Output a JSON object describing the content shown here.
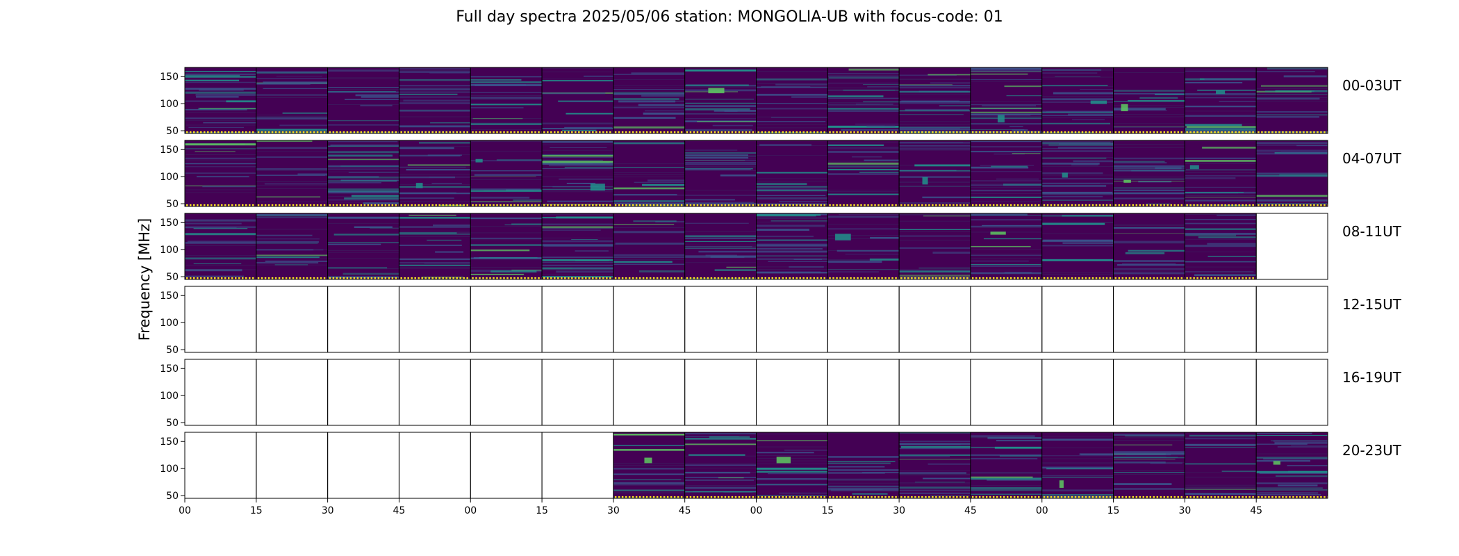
{
  "chart_data": {
    "type": "heatmap",
    "title": "Full day spectra 2025/05/06 station: MONGOLIA-UB with focus-code: 01",
    "ylabel": "Frequency [MHz]",
    "xlabel": "",
    "yticks": [
      50,
      100,
      150
    ],
    "ylim": [
      45,
      167
    ],
    "xticks": [
      "00",
      "15",
      "30",
      "45",
      "00",
      "15",
      "30",
      "45",
      "00",
      "15",
      "30",
      "45",
      "00",
      "15",
      "30",
      "45"
    ],
    "panels_per_row": 16,
    "panel_minutes": 15,
    "colormap": [
      "#440154",
      "#3b528b",
      "#21918c",
      "#5ec962",
      "#fde725"
    ],
    "rows": [
      {
        "label": "00-03UT",
        "available": [
          1,
          1,
          1,
          1,
          1,
          1,
          1,
          1,
          1,
          1,
          1,
          1,
          1,
          1,
          1,
          1
        ]
      },
      {
        "label": "04-07UT",
        "available": [
          1,
          1,
          1,
          1,
          1,
          1,
          1,
          1,
          1,
          1,
          1,
          1,
          1,
          1,
          1,
          1
        ]
      },
      {
        "label": "08-11UT",
        "available": [
          1,
          1,
          1,
          1,
          1,
          1,
          1,
          1,
          1,
          1,
          1,
          1,
          1,
          1,
          1,
          0
        ]
      },
      {
        "label": "12-15UT",
        "available": [
          0,
          0,
          0,
          0,
          0,
          0,
          0,
          0,
          0,
          0,
          0,
          0,
          0,
          0,
          0,
          0
        ]
      },
      {
        "label": "16-19UT",
        "available": [
          0,
          0,
          0,
          0,
          0,
          0,
          0,
          0,
          0,
          0,
          0,
          0,
          0,
          0,
          0,
          0
        ]
      },
      {
        "label": "20-23UT",
        "available": [
          0,
          0,
          0,
          0,
          0,
          0,
          1,
          1,
          1,
          1,
          1,
          1,
          1,
          1,
          1,
          1
        ]
      }
    ]
  }
}
